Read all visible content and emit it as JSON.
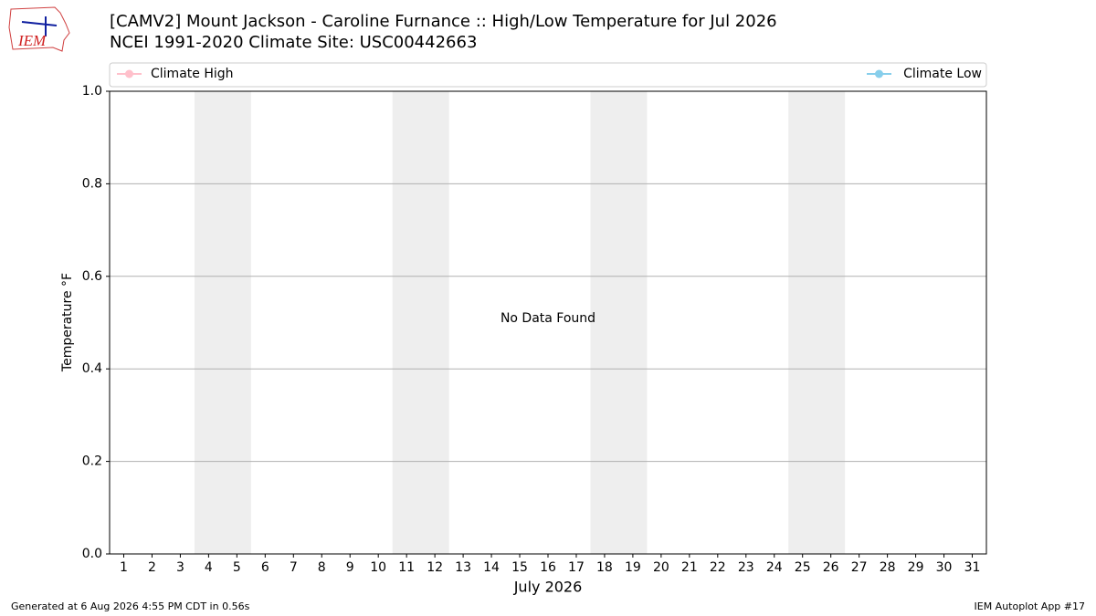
{
  "logo_text": "IEM",
  "chart_data": {
    "type": "line",
    "title": [
      "[CAMV2] Mount Jackson - Caroline Furnance :: High/Low Temperature for Jul 2026",
      "NCEI 1991-2020 Climate Site: USC00442663"
    ],
    "xlabel": "July 2026",
    "ylabel": "Temperature °F",
    "annotation": "No Data Found",
    "x": [
      1,
      2,
      3,
      4,
      5,
      6,
      7,
      8,
      9,
      10,
      11,
      12,
      13,
      14,
      15,
      16,
      17,
      18,
      19,
      20,
      21,
      22,
      23,
      24,
      25,
      26,
      27,
      28,
      29,
      30,
      31
    ],
    "series": [
      {
        "name": "Climate High",
        "color": "#ffc0cb",
        "values": [
          null,
          null,
          null,
          null,
          null,
          null,
          null,
          null,
          null,
          null,
          null,
          null,
          null,
          null,
          null,
          null,
          null,
          null,
          null,
          null,
          null,
          null,
          null,
          null,
          null,
          null,
          null,
          null,
          null,
          null,
          null
        ]
      },
      {
        "name": "Climate Low",
        "color": "#87ceeb",
        "values": [
          null,
          null,
          null,
          null,
          null,
          null,
          null,
          null,
          null,
          null,
          null,
          null,
          null,
          null,
          null,
          null,
          null,
          null,
          null,
          null,
          null,
          null,
          null,
          null,
          null,
          null,
          null,
          null,
          null,
          null,
          null
        ]
      }
    ],
    "xlim": [
      0.5,
      31.5
    ],
    "xticks": [
      1,
      2,
      3,
      4,
      5,
      6,
      7,
      8,
      9,
      10,
      11,
      12,
      13,
      14,
      15,
      16,
      17,
      18,
      19,
      20,
      21,
      22,
      23,
      24,
      25,
      26,
      27,
      28,
      29,
      30,
      31
    ],
    "ylim": [
      0,
      1
    ],
    "yticks": [
      {
        "value": 0,
        "label": "0.0"
      },
      0.2,
      0.4,
      0.6,
      0.8,
      {
        "value": 1,
        "label": "1.0"
      }
    ],
    "grid": true,
    "shaded_spans": [
      [
        3.5,
        5.5
      ],
      [
        10.5,
        12.5
      ],
      [
        17.5,
        19.5
      ],
      [
        24.5,
        26.5
      ]
    ],
    "shade_color": "#eeeeee",
    "footer_left": "Generated at 6 Aug 2026 4:55 PM CDT in 0.56s",
    "footer_right": "IEM Autoplot App #17"
  }
}
